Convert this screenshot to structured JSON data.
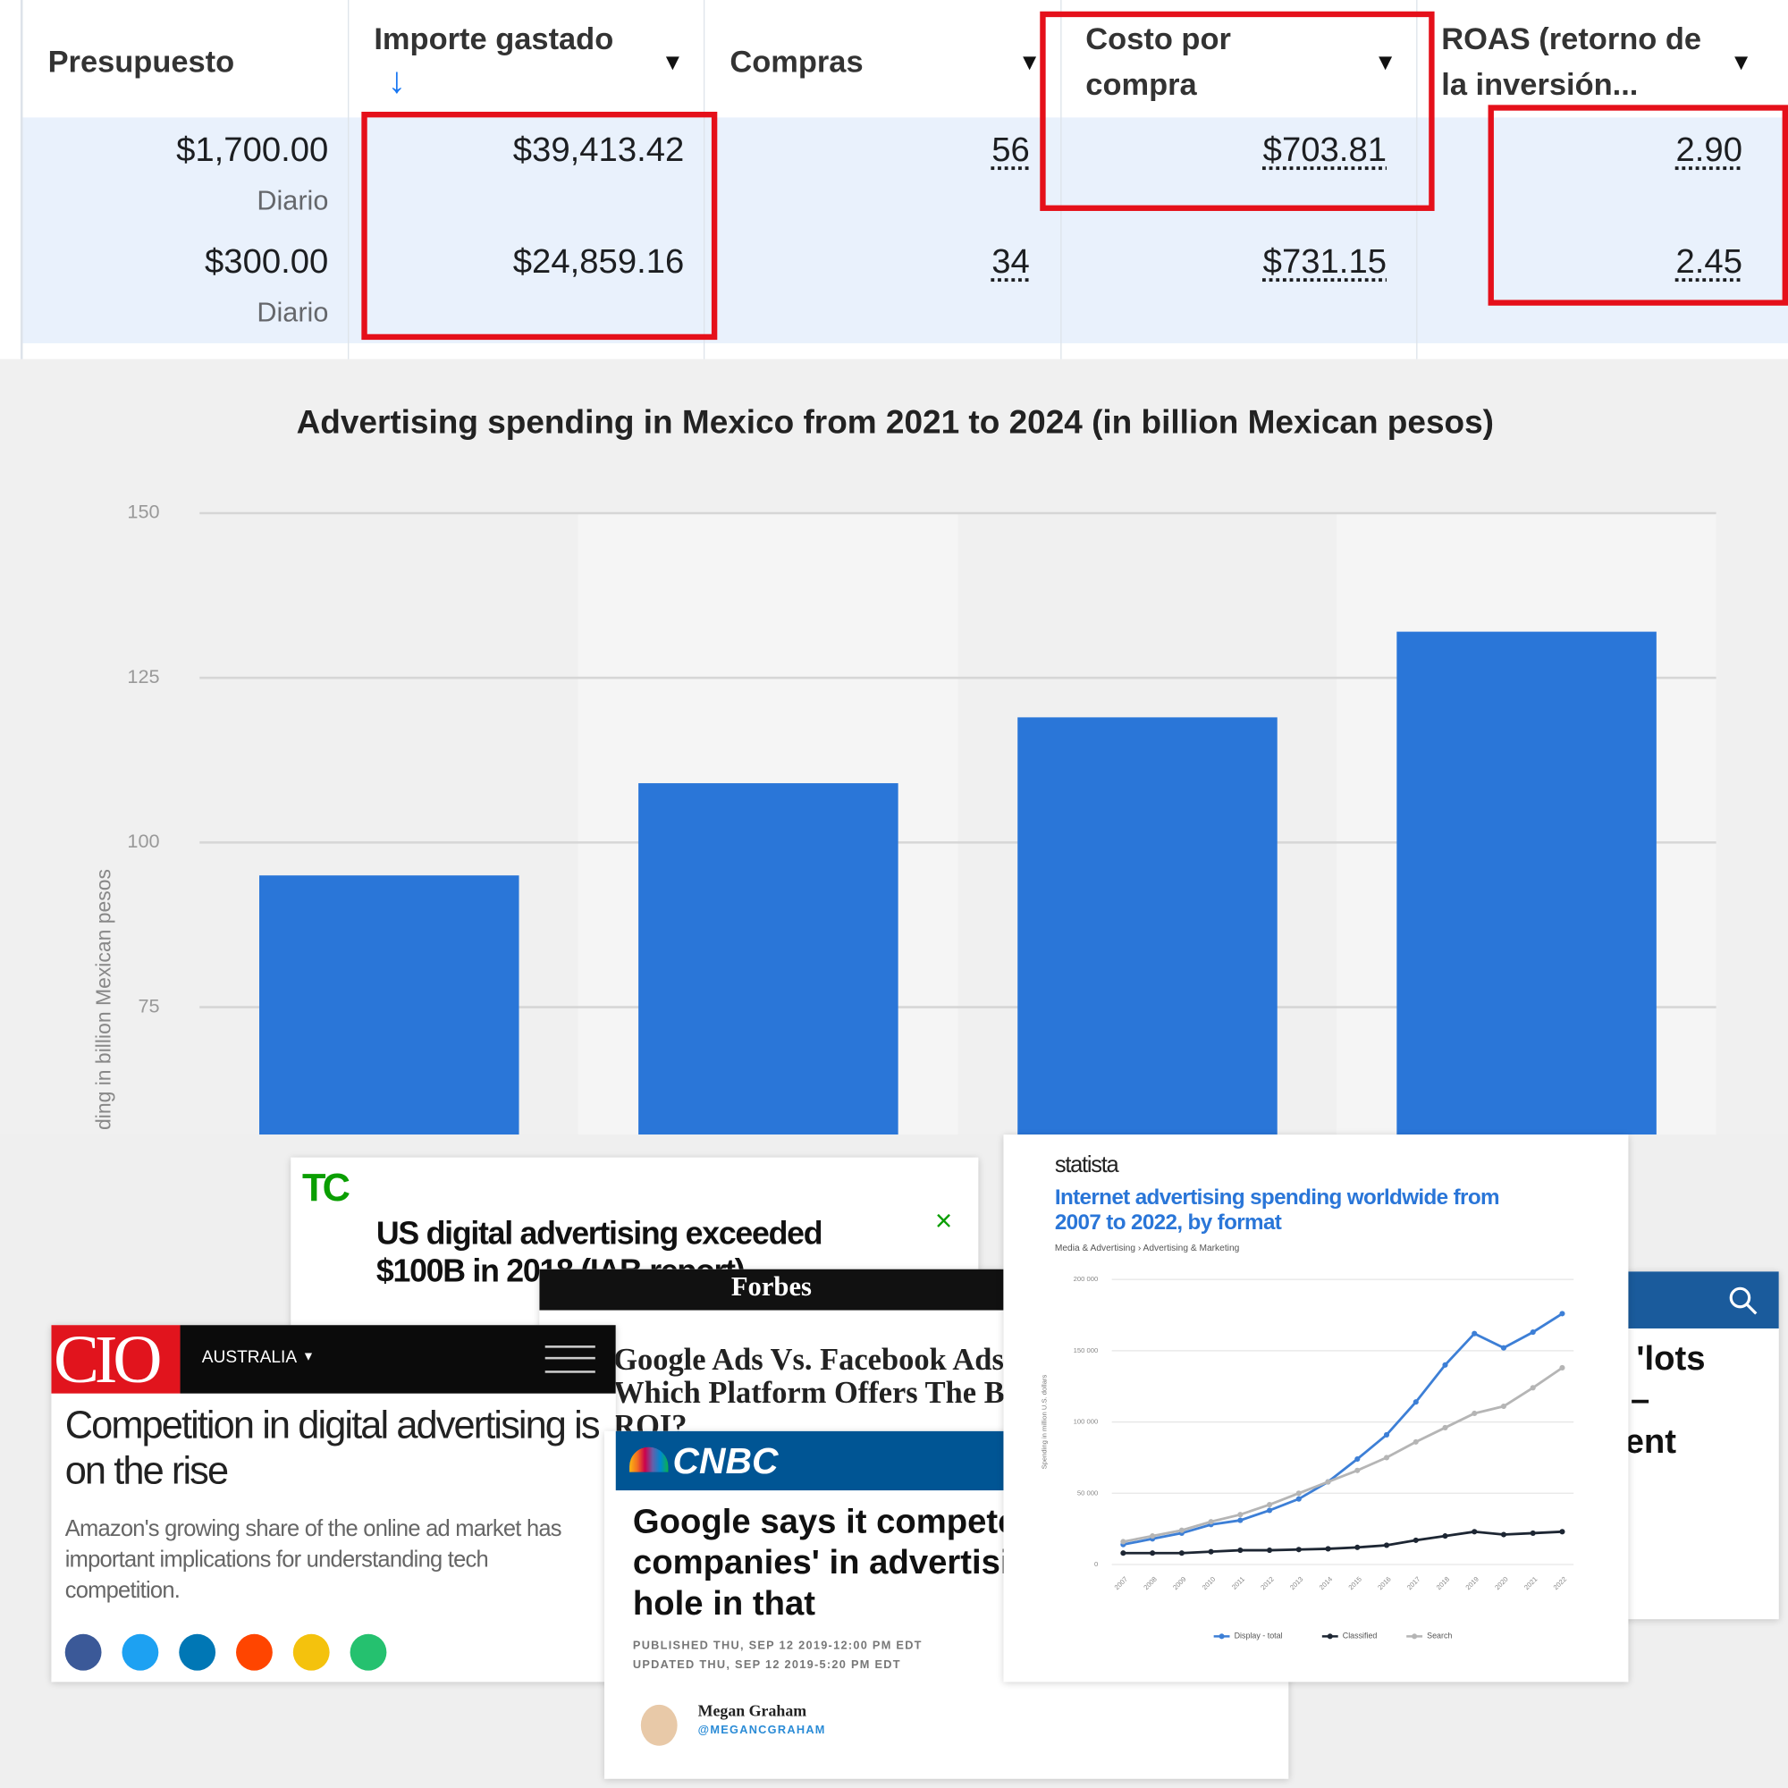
{
  "table": {
    "headers": [
      "Presupuesto",
      "Importe gastado",
      "Compras",
      "Costo por compra",
      "ROAS (retorno de la inversión..."
    ],
    "rows": [
      {
        "budget": "$1,700.00",
        "period": "Diario",
        "spent": "$39,413.42",
        "purchases": "56",
        "cost": "$703.81",
        "roas": "2.90"
      },
      {
        "budget": "$300.00",
        "period": "Diario",
        "spent": "$24,859.16",
        "purchases": "34",
        "cost": "$731.15",
        "roas": "2.45"
      }
    ]
  },
  "chart_data": [
    {
      "type": "bar",
      "title": "Advertising spending in Mexico from 2021 to 2024 (in billion Mexican pesos)",
      "y_label": "ding in billion Mexican pesos",
      "categories": [
        null,
        null,
        null,
        null
      ],
      "values": [
        95,
        109,
        119,
        132
      ],
      "color": "#2a76d8",
      "ylim": [
        56,
        150
      ],
      "yticks": [
        75,
        100,
        125,
        150
      ],
      "grid": true
    },
    {
      "type": "line",
      "title": "Internet advertising spending worldwide from 2007 to 2022, by format",
      "subtitle": "Media & Advertising › Advertising & Marketing",
      "y_label": "Spending in million U.S. dollars",
      "categories": [
        "2007",
        "2008",
        "2009",
        "2010",
        "2011",
        "2012",
        "2013",
        "2014",
        "2015",
        "2016",
        "2017",
        "2018",
        "2019",
        "2020",
        "2021",
        "2022"
      ],
      "series": [
        {
          "name": "Display - total",
          "color": "#3d7fd6",
          "values": [
            14000,
            18000,
            22000,
            28000,
            31000,
            38000,
            46000,
            58000,
            74000,
            91000,
            114000,
            140000,
            162000,
            152000,
            163000,
            176000
          ]
        },
        {
          "name": "Classified",
          "color": "#1d2633",
          "values": [
            8000,
            8000,
            8000,
            9000,
            10000,
            10000,
            10500,
            11000,
            12000,
            13500,
            17000,
            20000,
            23000,
            21000,
            22000,
            23000
          ]
        },
        {
          "name": "Search",
          "color": "#b5b5b5",
          "values": [
            16000,
            20000,
            24000,
            30000,
            35000,
            42000,
            50000,
            58000,
            66000,
            75000,
            86000,
            96000,
            106000,
            111000,
            124000,
            138000
          ]
        }
      ],
      "ylim": [
        0,
        200000
      ],
      "yticks": [
        0,
        {
          "value": 50000,
          "label": "50 000"
        },
        {
          "value": 100000,
          "label": "100 000"
        },
        {
          "value": 150000,
          "label": "150 000"
        },
        {
          "value": 200000,
          "label": "200 000"
        }
      ],
      "grid": true,
      "legend": "bottom"
    }
  ],
  "clippings": {
    "techcrunch": {
      "logo": "TC",
      "headline": "US digital advertising exceeded $100B in 2018 (IAB report)"
    },
    "forbes": {
      "brand": "Forbes",
      "headline": "Google Ads Vs. Facebook Ads: Which Platform Offers The Best ROI?"
    },
    "cio": {
      "logo": "CIO",
      "edition": "AUSTRALIA",
      "headline": "Competition in digital advertising is on the rise",
      "body": "Amazon's growing share of the online ad market has important implications for understanding tech competition."
    },
    "cnbc": {
      "brand": "CNBC",
      "headline": "Google says it competes with 'lots of companies' in advertising — here's the hole in that",
      "published": "PUBLISHED THU, SEP 12 2019-12:00 PM EDT",
      "updated": "UPDATED THU, SEP 12 2019-5:20 PM EDT",
      "author": "Megan Graham",
      "handle": "@MEGANCGRAHAM"
    },
    "statista": {
      "brand": "statista"
    },
    "partial": {
      "lines": [
        "'lots",
        "–",
        "ent"
      ]
    }
  }
}
